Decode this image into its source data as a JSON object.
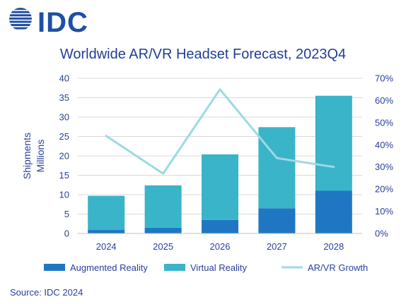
{
  "brand": {
    "logo_text": "IDC",
    "color": "#1f4fa3"
  },
  "source": "Source: IDC 2024",
  "chart_data": {
    "type": "bar",
    "stacked": true,
    "title": "Worldwide AR/VR Headset Forecast, 2023Q4",
    "categories": [
      "2024",
      "2025",
      "2026",
      "2027",
      "2028"
    ],
    "ylabel_lines": [
      "Shipments",
      "Millions"
    ],
    "ylim": [
      0,
      40
    ],
    "yticks": [
      "0",
      "5",
      "10",
      "15",
      "20",
      "25",
      "30",
      "35",
      "40"
    ],
    "y2lim": [
      0,
      70
    ],
    "y2ticks": [
      "0%",
      "10%",
      "20%",
      "30%",
      "40%",
      "50%",
      "60%",
      "70%"
    ],
    "grid": true,
    "legend_position": "bottom",
    "series": [
      {
        "name": "Augmented Reality",
        "type": "bar",
        "axis": "left",
        "color": "#1f77c4",
        "values": [
          0.9,
          1.5,
          3.5,
          6.5,
          11.0
        ]
      },
      {
        "name": "Virtual Reality",
        "type": "bar",
        "axis": "left",
        "color": "#3ab4c8",
        "values": [
          8.8,
          10.9,
          16.9,
          20.9,
          24.5
        ]
      },
      {
        "name": "AR/VR Growth",
        "type": "line",
        "axis": "right",
        "color": "#9dd9e3",
        "values": [
          44,
          27,
          65,
          34,
          30
        ]
      }
    ]
  }
}
